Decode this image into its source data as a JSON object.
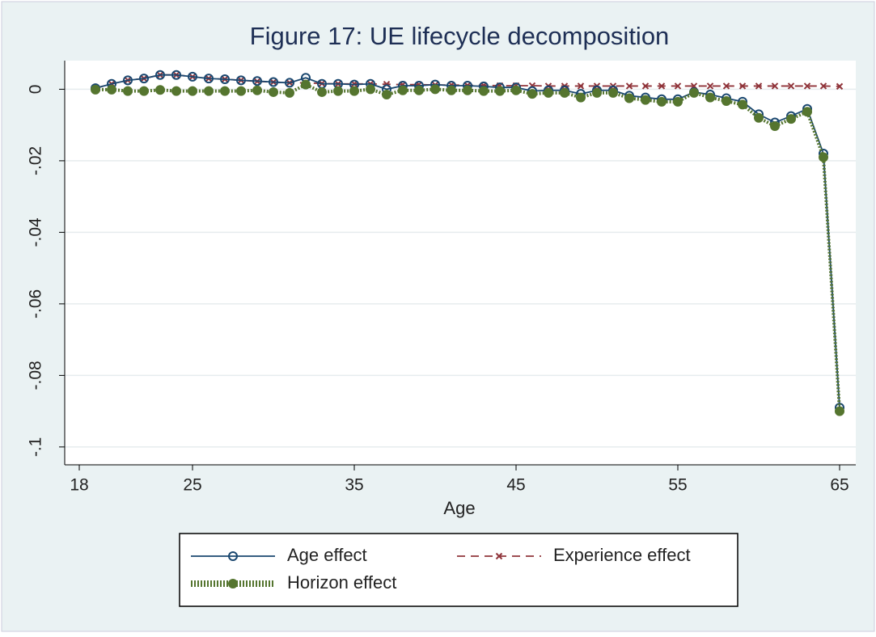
{
  "chart_data": {
    "type": "line",
    "title": "Figure 17: UE lifecycle decomposition",
    "xlabel": "Age",
    "x": [
      19,
      20,
      21,
      22,
      23,
      24,
      25,
      26,
      27,
      28,
      29,
      30,
      31,
      32,
      33,
      34,
      35,
      36,
      37,
      38,
      39,
      40,
      41,
      42,
      43,
      44,
      45,
      46,
      47,
      48,
      49,
      50,
      51,
      52,
      53,
      54,
      55,
      56,
      57,
      58,
      59,
      60,
      61,
      62,
      63,
      64,
      65
    ],
    "series": [
      {
        "name": "Age effect",
        "color": "#1a476f",
        "marker": "hollow-circle",
        "dash": "solid",
        "values": [
          0.0003,
          0.0015,
          0.0025,
          0.003,
          0.004,
          0.004,
          0.0035,
          0.003,
          0.0028,
          0.0025,
          0.0023,
          0.002,
          0.0018,
          0.0032,
          0.0015,
          0.0015,
          0.0013,
          0.0015,
          0.0,
          0.001,
          0.001,
          0.0013,
          0.001,
          0.001,
          0.0008,
          0.0005,
          0.0005,
          -0.0005,
          -0.0003,
          -0.0003,
          -0.0013,
          -0.0003,
          -0.0003,
          -0.0018,
          -0.0023,
          -0.0028,
          -0.0028,
          -0.0008,
          -0.0015,
          -0.0025,
          -0.0035,
          -0.007,
          -0.0093,
          -0.0075,
          -0.0055,
          -0.018,
          -0.089
        ]
      },
      {
        "name": "Experience effect",
        "color": "#90353b",
        "marker": "x",
        "dash": "dash",
        "values": [
          0.0003,
          0.0015,
          0.0025,
          0.003,
          0.004,
          0.004,
          0.0035,
          0.003,
          0.0028,
          0.0025,
          0.0022,
          0.002,
          0.0018,
          0.0018,
          0.0016,
          0.0015,
          0.0015,
          0.0015,
          0.0014,
          0.0013,
          0.0013,
          0.0012,
          0.0012,
          0.0011,
          0.0011,
          0.001,
          0.001,
          0.001,
          0.0009,
          0.0009,
          0.0009,
          0.0009,
          0.0009,
          0.0009,
          0.0009,
          0.0009,
          0.0009,
          0.0009,
          0.0009,
          0.0009,
          0.0009,
          0.0009,
          0.0009,
          0.0009,
          0.0009,
          0.0009,
          0.0008
        ]
      },
      {
        "name": "Horizon effect",
        "color": "#55752f",
        "marker": "filled-circle",
        "dash": "dot",
        "values": [
          -0.0001,
          -0.0001,
          -0.0005,
          -0.0005,
          -0.0002,
          -0.0005,
          -0.0005,
          -0.0005,
          -0.0005,
          -0.0005,
          -0.0003,
          -0.0008,
          -0.001,
          0.0013,
          -0.0008,
          -0.0005,
          -0.0005,
          0.0,
          -0.0015,
          -0.0003,
          -0.0003,
          0.0,
          -0.0003,
          -0.0003,
          -0.0005,
          -0.0005,
          -0.0003,
          -0.0013,
          -0.001,
          -0.001,
          -0.0023,
          -0.001,
          -0.001,
          -0.0025,
          -0.003,
          -0.0035,
          -0.0035,
          -0.001,
          -0.0023,
          -0.0033,
          -0.0043,
          -0.008,
          -0.0103,
          -0.0083,
          -0.0063,
          -0.019,
          -0.09
        ]
      }
    ],
    "xlim": [
      17.1,
      66
    ],
    "xticks": [
      18,
      25,
      35,
      45,
      55,
      65
    ],
    "ylim": [
      -0.105,
      0.008
    ],
    "yticks": [
      0,
      {
        "value": -0.02,
        "label": "-.02"
      },
      {
        "value": -0.04,
        "label": "-.04"
      },
      {
        "value": -0.06,
        "label": "-.06"
      },
      {
        "value": -0.08,
        "label": "-.08"
      },
      {
        "value": -0.1,
        "label": "-.1"
      }
    ],
    "grid": true,
    "legend": "bottom"
  }
}
